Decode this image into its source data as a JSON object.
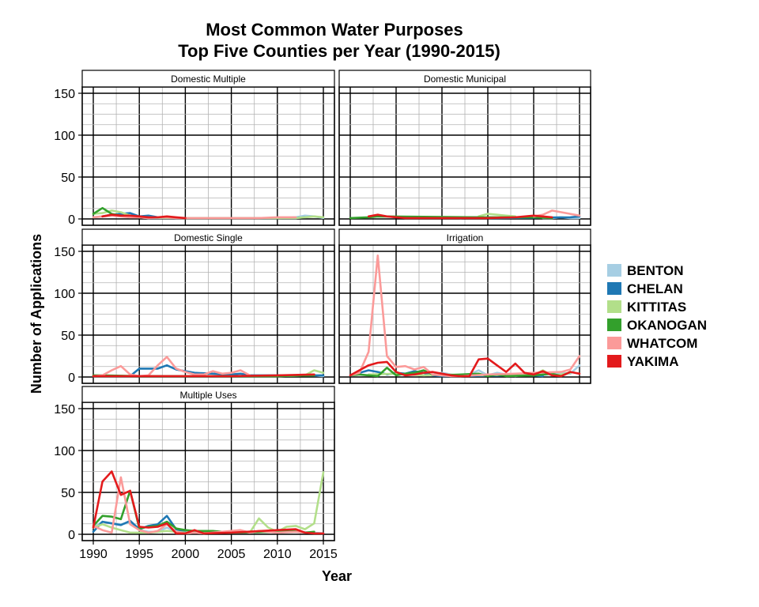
{
  "chart_data": {
    "type": "line",
    "title_line1": "Most Common Water Purposes",
    "title_line2": "Top Five Counties per Year (1990-2015)",
    "xlabel": "Year",
    "ylabel": "Number of Applications",
    "xlim": [
      1990,
      2015
    ],
    "ylim": [
      0,
      150
    ],
    "x_ticks": [
      1990,
      1995,
      2000,
      2005,
      2010,
      2015
    ],
    "y_ticks": [
      0,
      50,
      100,
      150
    ],
    "grid": true,
    "legend_position": "right",
    "series_meta": [
      {
        "name": "BENTON",
        "color": "#a6cee3"
      },
      {
        "name": "CHELAN",
        "color": "#1f78b4"
      },
      {
        "name": "KITTITAS",
        "color": "#b2df8a"
      },
      {
        "name": "OKANOGAN",
        "color": "#33a02c"
      },
      {
        "name": "WHATCOM",
        "color": "#fb9a99"
      },
      {
        "name": "YAKIMA",
        "color": "#e31a1c"
      }
    ],
    "panels": [
      {
        "label": "Domestic Multiple",
        "series": [
          {
            "name": "BENTON",
            "x": [
              1990,
              1991,
              1992,
              1993,
              1994,
              1995,
              1996,
              1997,
              1998,
              1999,
              2000,
              2005,
              2010,
              2012,
              2013,
              2014,
              2015
            ],
            "values": [
              2,
              3,
              4,
              5,
              3,
              2,
              1,
              1,
              1,
              1,
              1,
              1,
              1,
              2,
              4,
              3,
              1
            ]
          },
          {
            "name": "CHELAN",
            "x": [
              1991,
              1992,
              1993,
              1994,
              1995,
              1996,
              1997,
              1998,
              1999,
              2000,
              2012,
              2013
            ],
            "values": [
              3,
              5,
              6,
              7,
              3,
              4,
              2,
              2,
              1,
              1,
              1,
              2
            ]
          },
          {
            "name": "KITTITAS",
            "x": [
              1990,
              1991,
              1992,
              1993,
              1994,
              1995,
              2000,
              2005,
              2010,
              2012,
              2013,
              2014,
              2015
            ],
            "values": [
              6,
              7,
              10,
              8,
              4,
              2,
              1,
              1,
              1,
              1,
              2,
              3,
              2
            ]
          },
          {
            "name": "OKANOGAN",
            "x": [
              1990,
              1991,
              1992,
              1993,
              1994,
              1995
            ],
            "values": [
              6,
              13,
              6,
              4,
              3,
              2
            ]
          },
          {
            "name": "WHATCOM",
            "x": [
              1990,
              1991,
              1992,
              1993,
              1994,
              1995,
              1996,
              1997,
              1998,
              1999,
              2000,
              2002,
              2005,
              2008,
              2010,
              2012
            ],
            "values": [
              2,
              3,
              4,
              3,
              2,
              2,
              1,
              2,
              2,
              1,
              1,
              1,
              1,
              1,
              2,
              2
            ]
          },
          {
            "name": "YAKIMA",
            "x": [
              1991,
              1992,
              1993,
              1994,
              1995,
              1996,
              1997,
              1998,
              1999,
              2000
            ],
            "values": [
              3,
              5,
              4,
              4,
              3,
              2,
              2,
              3,
              2,
              1
            ]
          }
        ]
      },
      {
        "label": "Domestic Municipal",
        "series": [
          {
            "name": "BENTON",
            "x": [
              2011,
              2012,
              2013,
              2014,
              2015
            ],
            "values": [
              1,
              1,
              2,
              1,
              1
            ]
          },
          {
            "name": "CHELAN",
            "x": [
              2002,
              2003,
              2004,
              2005,
              2006,
              2014,
              2015
            ],
            "values": [
              1,
              2,
              2,
              1,
              1,
              2,
              3
            ]
          },
          {
            "name": "KITTITAS",
            "x": [
              2004,
              2005,
              2006,
              2007,
              2008
            ],
            "values": [
              3,
              6,
              5,
              4,
              3
            ]
          },
          {
            "name": "OKANOGAN",
            "x": [
              1990,
              1992,
              1993,
              2004,
              2008,
              2010,
              2012
            ],
            "values": [
              1,
              2,
              3,
              2,
              2,
              2,
              1
            ]
          },
          {
            "name": "WHATCOM",
            "x": [
              2010,
              2011,
              2012,
              2013,
              2014,
              2015
            ],
            "values": [
              3,
              5,
              10,
              8,
              6,
              4
            ]
          },
          {
            "name": "YAKIMA",
            "x": [
              1992,
              1993,
              1994,
              1995,
              1996,
              2000,
              2005,
              2008,
              2010,
              2012
            ],
            "values": [
              3,
              5,
              3,
              2,
              1,
              1,
              1,
              2,
              4,
              2
            ]
          }
        ]
      },
      {
        "label": "Domestic Single",
        "series": [
          {
            "name": "BENTON",
            "x": [
              1990,
              1995,
              2000,
              2005,
              2010,
              2014,
              2015
            ],
            "values": [
              1,
              1,
              1,
              1,
              1,
              2,
              1
            ]
          },
          {
            "name": "CHELAN",
            "x": [
              1990,
              1994,
              1995,
              1996,
              1997,
              1998,
              1999,
              2000,
              2001,
              2003,
              2005,
              2006,
              2007,
              2014,
              2015
            ],
            "values": [
              1,
              1,
              10,
              10,
              10,
              14,
              9,
              7,
              5,
              4,
              3,
              4,
              2,
              2,
              2
            ]
          },
          {
            "name": "KITTITAS",
            "x": [
              1990,
              1995,
              2000,
              2005,
              2010,
              2013,
              2014,
              2015
            ],
            "values": [
              1,
              1,
              1,
              1,
              1,
              2,
              8,
              5
            ]
          },
          {
            "name": "OKANOGAN",
            "x": [
              1990,
              1991,
              1995,
              2000,
              2005,
              2010,
              2014
            ],
            "values": [
              2,
              2,
              1,
              1,
              1,
              1,
              2
            ]
          },
          {
            "name": "WHATCOM",
            "x": [
              1990,
              1991,
              1992,
              1993,
              1994,
              1995,
              1996,
              1997,
              1998,
              1999,
              2000,
              2001,
              2002,
              2003,
              2004,
              2005,
              2006,
              2007
            ],
            "values": [
              1,
              2,
              8,
              13,
              3,
              1,
              2,
              14,
              24,
              10,
              6,
              3,
              3,
              7,
              4,
              5,
              8,
              2
            ]
          },
          {
            "name": "YAKIMA",
            "x": [
              1990,
              1995,
              2000,
              2005,
              2010,
              2014
            ],
            "values": [
              1,
              1,
              1,
              1,
              2,
              3
            ]
          }
        ]
      },
      {
        "label": "Irrigation",
        "series": [
          {
            "name": "BENTON",
            "x": [
              1998,
              1999,
              2000,
              2001,
              2002,
              2003,
              2004,
              2005,
              2006,
              2007,
              2008,
              2009,
              2010,
              2011,
              2012,
              2013,
              2014,
              2015
            ],
            "values": [
              2,
              3,
              5,
              3,
              1,
              3,
              8,
              2,
              5,
              3,
              1,
              3,
              3,
              2,
              4,
              5,
              4,
              14
            ]
          },
          {
            "name": "CHELAN",
            "x": [
              1990,
              1991,
              1992,
              1993,
              1994,
              1995,
              1996,
              1997,
              1998,
              1999,
              2000,
              2010,
              2011
            ],
            "values": [
              2,
              5,
              8,
              6,
              3,
              5,
              4,
              7,
              5,
              2,
              1,
              2,
              1
            ]
          },
          {
            "name": "KITTITAS",
            "x": [
              1992,
              1995,
              1998,
              2000,
              2005,
              2008,
              2009,
              2010,
              2011,
              2012,
              2013,
              2014
            ],
            "values": [
              3,
              4,
              2,
              3,
              2,
              3,
              2,
              2,
              8,
              2,
              3,
              5
            ]
          },
          {
            "name": "OKANOGAN",
            "x": [
              1990,
              1991,
              1992,
              1993,
              1994,
              1995,
              1996,
              1997,
              1998,
              1999,
              2000,
              2004,
              2005,
              2006,
              2007,
              2010,
              2012,
              2013,
              2014
            ],
            "values": [
              2,
              3,
              2,
              1,
              11,
              2,
              4,
              5,
              8,
              3,
              2,
              4,
              1,
              3,
              1,
              2,
              4,
              1,
              6
            ]
          },
          {
            "name": "WHATCOM",
            "x": [
              1990,
              1991,
              1992,
              1993,
              1994,
              1995,
              1996,
              1997,
              1998,
              1999,
              2000,
              2001,
              2002,
              2005,
              2008,
              2010,
              2013,
              2014,
              2015
            ],
            "values": [
              2,
              5,
              30,
              145,
              25,
              12,
              13,
              9,
              12,
              3,
              2,
              1,
              1,
              3,
              4,
              5,
              6,
              9,
              25
            ]
          },
          {
            "name": "YAKIMA",
            "x": [
              1990,
              1991,
              1992,
              1993,
              1994,
              1995,
              1996,
              1997,
              1998,
              1999,
              2000,
              2001,
              2002,
              2003,
              2004,
              2005,
              2006,
              2007,
              2008,
              2009,
              2010,
              2011,
              2012,
              2013,
              2014,
              2015
            ],
            "values": [
              2,
              8,
              14,
              17,
              18,
              6,
              2,
              3,
              5,
              6,
              4,
              2,
              1,
              1,
              21,
              22,
              14,
              6,
              16,
              5,
              3,
              7,
              2,
              1,
              6,
              4
            ]
          }
        ]
      },
      {
        "label": "Multiple Uses",
        "series": [
          {
            "name": "BENTON",
            "x": [
              1990,
              1991,
              1992,
              1993,
              1994,
              1995,
              1996,
              1997,
              1998,
              1999,
              2000,
              2005,
              2010,
              2012,
              2014,
              2015
            ],
            "values": [
              8,
              15,
              13,
              12,
              14,
              5,
              3,
              3,
              8,
              3,
              2,
              2,
              3,
              3,
              2,
              1
            ]
          },
          {
            "name": "CHELAN",
            "x": [
              1990,
              1991,
              1992,
              1993,
              1994,
              1995,
              1996,
              1997,
              1998,
              1999,
              2000
            ],
            "values": [
              3,
              15,
              13,
              11,
              16,
              6,
              10,
              12,
              22,
              6,
              3
            ]
          },
          {
            "name": "KITTITAS",
            "x": [
              1990,
              1991,
              1992,
              1993,
              1994,
              1995,
              1996,
              1997,
              1998,
              1999,
              2000,
              2005,
              2006,
              2007,
              2008,
              2009,
              2010,
              2011,
              2012,
              2013,
              2014,
              2015
            ],
            "values": [
              8,
              12,
              8,
              5,
              2,
              2,
              2,
              3,
              4,
              3,
              2,
              2,
              3,
              2,
              19,
              8,
              3,
              9,
              10,
              6,
              13,
              74
            ]
          },
          {
            "name": "OKANOGAN",
            "x": [
              1990,
              1991,
              1992,
              1993,
              1994,
              1995,
              1996,
              1997,
              1998,
              1999,
              2000,
              2001,
              2003,
              2005,
              2010,
              2012,
              2013,
              2014
            ],
            "values": [
              10,
              22,
              21,
              18,
              52,
              7,
              9,
              10,
              15,
              7,
              5,
              4,
              4,
              2,
              3,
              5,
              2,
              3
            ]
          },
          {
            "name": "WHATCOM",
            "x": [
              1990,
              1991,
              1992,
              1993,
              1994,
              1995,
              1996,
              1997,
              1998,
              1999,
              2000,
              2001,
              2002,
              2006,
              2007,
              2008,
              2010,
              2012,
              2013
            ],
            "values": [
              10,
              5,
              2,
              68,
              12,
              5,
              2,
              4,
              12,
              3,
              1,
              2,
              1,
              5,
              2,
              4,
              2,
              3,
              2
            ]
          },
          {
            "name": "YAKIMA",
            "x": [
              1990,
              1991,
              1992,
              1993,
              1994,
              1995,
              1996,
              1997,
              1998,
              1999,
              2000,
              2001,
              2002,
              2005,
              2010,
              2012,
              2013,
              2014,
              2015
            ],
            "values": [
              8,
              63,
              75,
              47,
              52,
              9,
              8,
              9,
              13,
              1,
              1,
              5,
              1,
              2,
              5,
              6,
              2,
              1,
              1
            ]
          }
        ]
      }
    ]
  }
}
